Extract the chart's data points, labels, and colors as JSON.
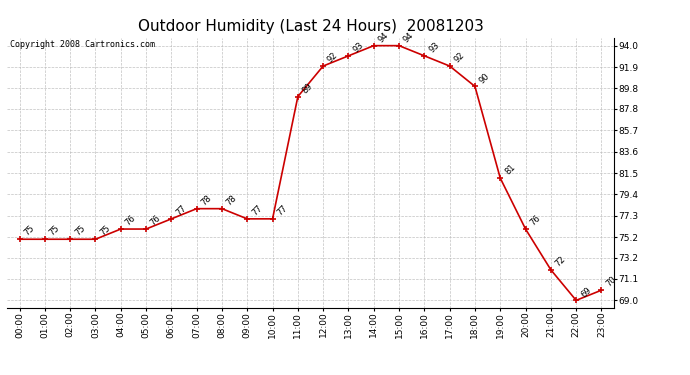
{
  "title": "Outdoor Humidity (Last 24 Hours)  20081203",
  "copyright": "Copyright 2008 Cartronics.com",
  "hours": [
    "00:00",
    "01:00",
    "02:00",
    "03:00",
    "04:00",
    "05:00",
    "06:00",
    "07:00",
    "08:00",
    "09:00",
    "10:00",
    "11:00",
    "12:00",
    "13:00",
    "14:00",
    "15:00",
    "16:00",
    "17:00",
    "18:00",
    "19:00",
    "20:00",
    "21:00",
    "22:00",
    "23:00"
  ],
  "values": [
    75,
    75,
    75,
    75,
    76,
    76,
    77,
    78,
    78,
    77,
    77,
    89,
    92,
    93,
    94,
    94,
    93,
    92,
    90,
    81,
    76,
    72,
    69,
    70
  ],
  "line_color": "#cc0000",
  "marker_color": "#cc0000",
  "bg_color": "#ffffff",
  "grid_color": "#bbbbbb",
  "title_fontsize": 11,
  "label_fontsize": 6.5,
  "annotation_fontsize": 6,
  "yticks": [
    69.0,
    71.1,
    73.2,
    75.2,
    77.3,
    79.4,
    81.5,
    83.6,
    85.7,
    87.8,
    89.8,
    91.9,
    94.0
  ],
  "ylim": [
    68.3,
    94.8
  ],
  "xlim": [
    -0.5,
    23.5
  ],
  "copyright_fontsize": 6
}
